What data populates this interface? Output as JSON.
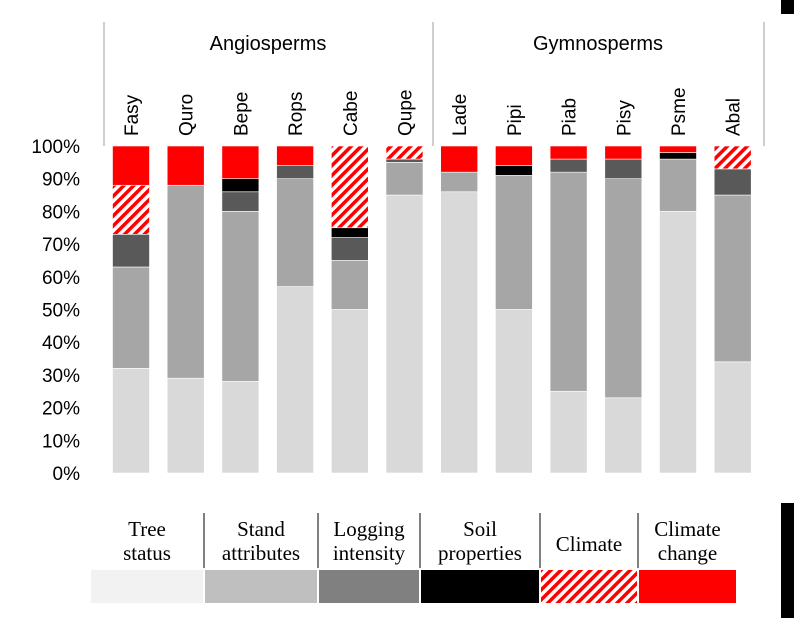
{
  "chart_data": {
    "type": "bar",
    "stacked": true,
    "groups": [
      {
        "label": "Angiosperms",
        "categories": [
          "Fasy",
          "Quro",
          "Bepe",
          "Rops",
          "Cabe",
          "Qupe"
        ]
      },
      {
        "label": "Gymnosperms",
        "categories": [
          "Lade",
          "Pipi",
          "Piab",
          "Pisy",
          "Psme",
          "Abal"
        ]
      }
    ],
    "categories": [
      "Fasy",
      "Quro",
      "Bepe",
      "Rops",
      "Cabe",
      "Qupe",
      "Lade",
      "Pipi",
      "Piab",
      "Pisy",
      "Psme",
      "Abal"
    ],
    "ylim": [
      0,
      100
    ],
    "yticks": [
      "0%",
      "10%",
      "20%",
      "30%",
      "40%",
      "50%",
      "60%",
      "70%",
      "80%",
      "90%",
      "100%"
    ],
    "series": [
      {
        "name": "Tree status",
        "color": "#d9d9d9",
        "values": [
          32,
          29,
          28,
          57,
          50,
          85,
          86,
          50,
          25,
          23,
          80,
          34
        ]
      },
      {
        "name": "Stand attributes",
        "color": "#a6a6a6",
        "values": [
          31,
          59,
          52,
          33,
          15,
          10,
          6,
          41,
          67,
          67,
          16,
          51
        ]
      },
      {
        "name": "Logging intensity",
        "color": "#595959",
        "values": [
          10,
          0,
          6,
          4,
          7,
          1,
          0,
          0,
          4,
          6,
          0,
          8
        ]
      },
      {
        "name": "Soil properties",
        "color": "#000000",
        "values": [
          0,
          0,
          4,
          0,
          3,
          0,
          0,
          3,
          0,
          0,
          2,
          0
        ]
      },
      {
        "name": "Climate",
        "color": "#ff0000",
        "pattern": "diagonal-hatch",
        "values": [
          15,
          0,
          0,
          0,
          25,
          4,
          0,
          0,
          0,
          0,
          0,
          7
        ]
      },
      {
        "name": "Climate change",
        "color": "#ff0000",
        "values": [
          12,
          12,
          10,
          6,
          0,
          0,
          8,
          6,
          4,
          4,
          2,
          0
        ]
      }
    ],
    "legend": {
      "position": "bottom",
      "labels": [
        [
          "Tree",
          "status"
        ],
        [
          "Stand",
          "attributes"
        ],
        [
          "Logging",
          "intensity"
        ],
        [
          "Soil",
          "properties"
        ],
        [
          "Climate"
        ],
        [
          "Climate",
          "change"
        ]
      ],
      "swatch_colors": [
        "#f2f2f2",
        "#bfbfbf",
        "#808080",
        "#000000",
        "#ff0000",
        "#ff0000"
      ],
      "swatch_patterns": [
        "solid",
        "solid",
        "solid",
        "solid",
        "diagonal-hatch",
        "solid"
      ]
    },
    "grid": false
  }
}
